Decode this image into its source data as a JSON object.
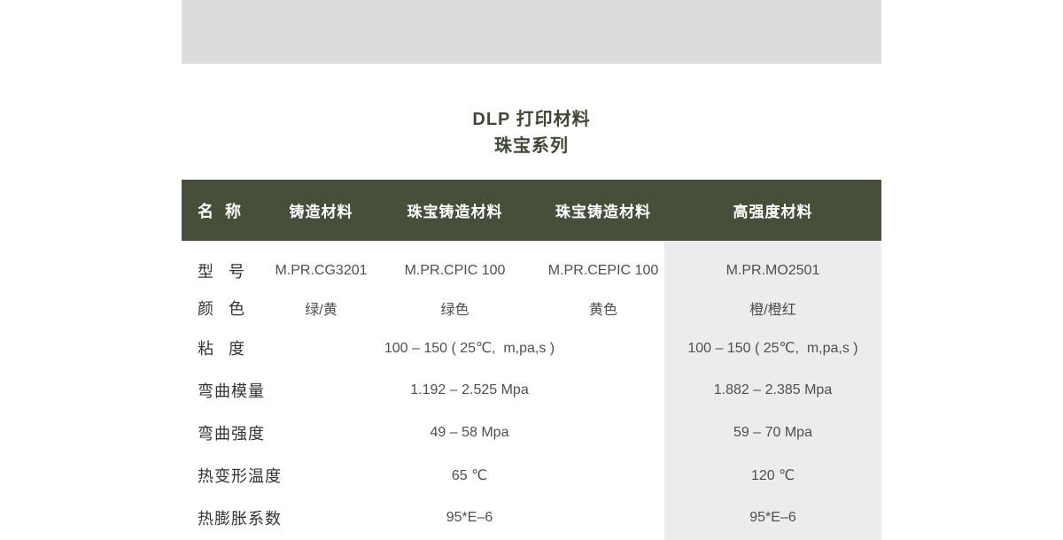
{
  "banner": {
    "bg_color": "#dbdcde"
  },
  "title": {
    "line1": "DLP 打印材料",
    "line2": "珠宝系列",
    "color": "#3d4933"
  },
  "table": {
    "header_bg": "#454f3a",
    "header_text_color": "#ffffff",
    "highlight_column_bg": "#ececec",
    "columns": [
      "名 称",
      "铸造材料",
      "珠宝铸造材料",
      "珠宝铸造材料",
      "高强度材料"
    ],
    "rows": [
      {
        "label": "型 号",
        "merged": false,
        "values": [
          "M.PR.CG3201",
          "M.PR.CPIC 100",
          "M.PR.CEPIC 100",
          "M.PR.MO2501"
        ]
      },
      {
        "label": "颜 色",
        "merged": false,
        "values": [
          "绿/黄",
          "绿色",
          "黄色",
          "橙/橙红"
        ]
      },
      {
        "label": "粘 度",
        "merged": true,
        "values": [
          "100 – 150 ( 25℃,  m,pa,s )",
          "100 – 150 ( 25℃,  m,pa,s )"
        ]
      },
      {
        "label": "弯曲模量",
        "merged": true,
        "values": [
          "1.192 – 2.525 Mpa",
          "1.882 – 2.385 Mpa"
        ]
      },
      {
        "label": "弯曲强度",
        "merged": true,
        "values": [
          "49 – 58 Mpa",
          "59 – 70 Mpa"
        ]
      },
      {
        "label": "热变形温度",
        "merged": true,
        "values": [
          "65 ℃",
          "120 ℃"
        ]
      },
      {
        "label": "热膨胀系数",
        "merged": true,
        "values": [
          "95*E–6",
          "95*E–6"
        ]
      }
    ]
  }
}
